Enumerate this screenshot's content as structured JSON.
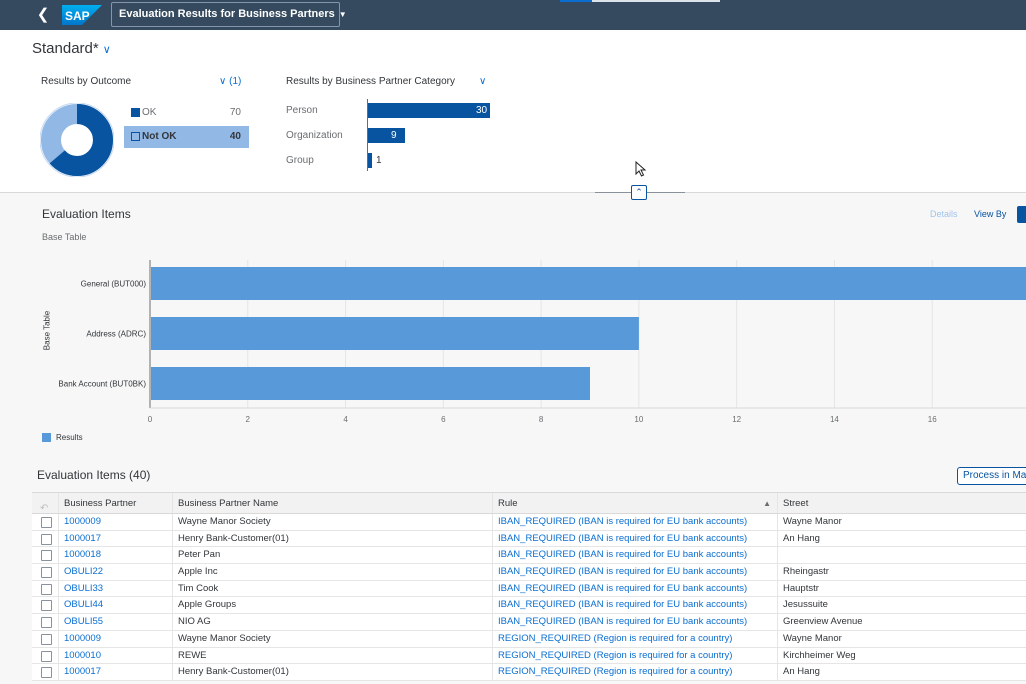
{
  "shell": {
    "logo_text": "SAP",
    "app_title": "Evaluation Results for Business Partners"
  },
  "header": {
    "variant": "Standard*",
    "outcome_card": {
      "title": "Results by Outcome",
      "filter_count": "(1)",
      "items": [
        {
          "label": "OK",
          "value": "70"
        },
        {
          "label": "Not OK",
          "value": "40"
        }
      ]
    },
    "category_card": {
      "title": "Results by Business Partner Category",
      "items": [
        {
          "label": "Person",
          "value": 30
        },
        {
          "label": "Organization",
          "value": 9
        },
        {
          "label": "Group",
          "value": 1
        }
      ]
    }
  },
  "items_chart_section": {
    "title": "Evaluation Items",
    "subtitle": "Base Table",
    "details_label": "Details",
    "view_by_label": "View By"
  },
  "chart_data": {
    "type": "bar",
    "orientation": "horizontal",
    "categories": [
      "General (BUT000)",
      "Address (ADRC)",
      "Bank Account (BUT0BK)"
    ],
    "values": [
      18,
      10,
      9
    ],
    "xlim": [
      0,
      18
    ],
    "x_ticks": [
      "0",
      "2",
      "4",
      "6",
      "8",
      "10",
      "12",
      "14",
      "16"
    ],
    "ylabel": "Base Table",
    "legend": [
      "Results"
    ],
    "color": "#5899da",
    "grid": true
  },
  "table": {
    "title": "Evaluation Items (40)",
    "mass_button_label": "Process in Mass",
    "columns": [
      "Business Partner",
      "Business Partner Name",
      "Rule",
      "Street"
    ],
    "rows": [
      {
        "bp": "1000009",
        "name": "Wayne Manor Society",
        "rule": "IBAN_REQUIRED (IBAN is required for EU bank accounts)",
        "street": "Wayne Manor"
      },
      {
        "bp": "1000017",
        "name": "Henry Bank-Customer(01)",
        "rule": "IBAN_REQUIRED (IBAN is required for EU bank accounts)",
        "street": "An Hang"
      },
      {
        "bp": "1000018",
        "name": "Peter Pan",
        "rule": "IBAN_REQUIRED (IBAN is required for EU bank accounts)",
        "street": ""
      },
      {
        "bp": "OBULI22",
        "name": "Apple Inc",
        "rule": "IBAN_REQUIRED (IBAN is required for EU bank accounts)",
        "street": "Rheingastr"
      },
      {
        "bp": "OBULI33",
        "name": "Tim Cook",
        "rule": "IBAN_REQUIRED (IBAN is required for EU bank accounts)",
        "street": "Hauptstr"
      },
      {
        "bp": "OBULI44",
        "name": "Apple Groups",
        "rule": "IBAN_REQUIRED (IBAN is required for EU bank accounts)",
        "street": "Jesussuite"
      },
      {
        "bp": "OBULI55",
        "name": "NIO AG",
        "rule": "IBAN_REQUIRED (IBAN is required for EU bank accounts)",
        "street": "Greenview Avenue"
      },
      {
        "bp": "1000009",
        "name": "Wayne Manor Society",
        "rule": "REGION_REQUIRED (Region is required for a country)",
        "street": "Wayne Manor"
      },
      {
        "bp": "1000010",
        "name": "REWE",
        "rule": "REGION_REQUIRED (Region is required for a country)",
        "street": "Kirchheimer Weg"
      },
      {
        "bp": "1000017",
        "name": "Henry Bank-Customer(01)",
        "rule": "REGION_REQUIRED (Region is required for a country)",
        "street": "An Hang"
      }
    ]
  },
  "colors": {
    "shell": "#354a5f",
    "accent": "#0a6ed1",
    "dark_bar": "#0854a0",
    "light_bar": "#5899da",
    "selected": "#92b8e6"
  },
  "icons": [
    "back-icon",
    "chevron-down-icon",
    "collapse-icon",
    "undo-icon",
    "sort-icon",
    "checkbox-icon",
    "cursor-icon"
  ]
}
